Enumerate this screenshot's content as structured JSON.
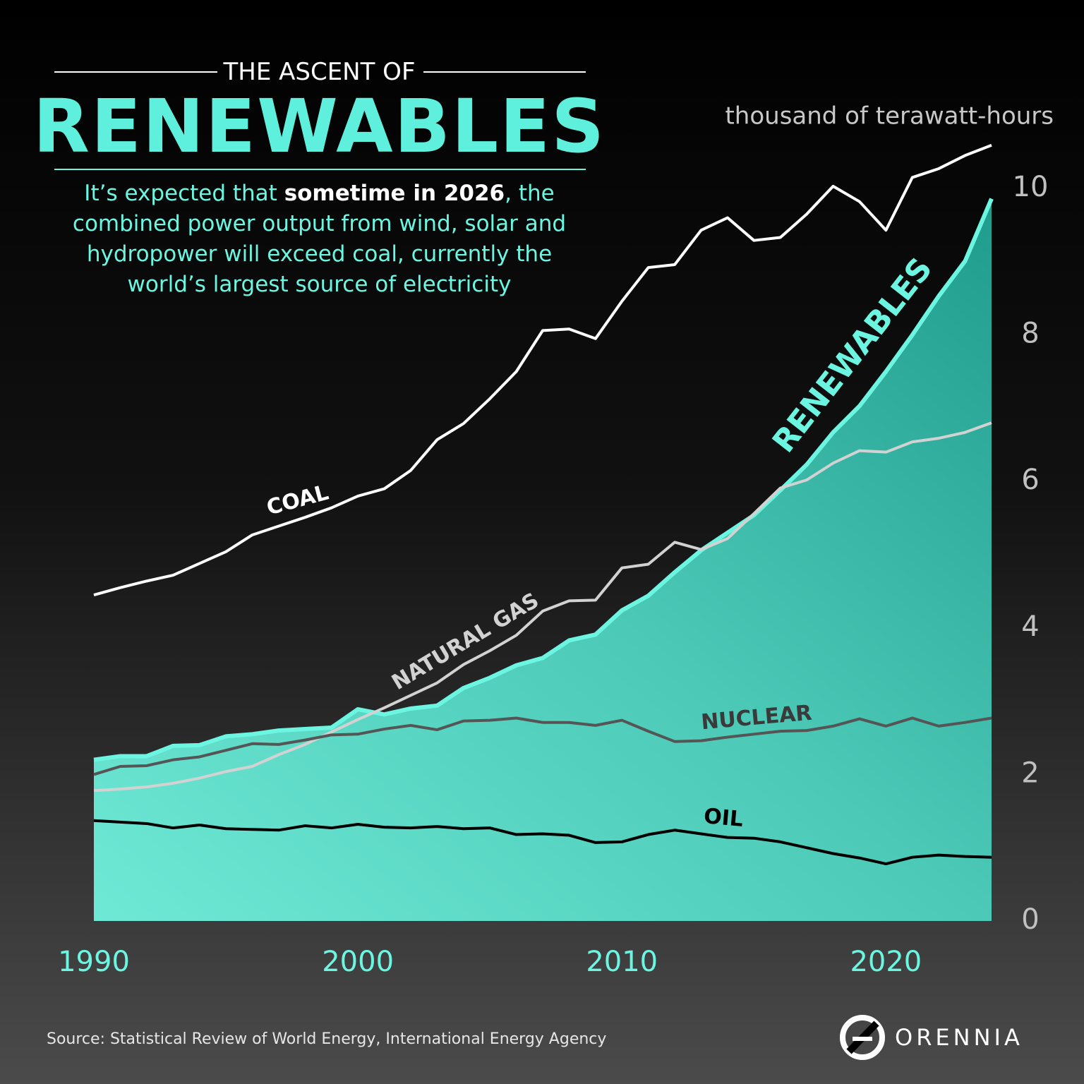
{
  "header": {
    "kicker": "THE ASCENT OF",
    "title": "RENEWABLES",
    "subtitle": [
      "It’s expected that ",
      "sometime in 2026",
      ", the combined power output from wind, solar and hydropower will exceed coal, currently the world’s largest source of electricity"
    ]
  },
  "chart_data": {
    "type": "line",
    "y_label": "thousand of terawatt-hours",
    "x": [
      1990,
      1991,
      1992,
      1993,
      1994,
      1995,
      1996,
      1997,
      1998,
      1999,
      2000,
      2001,
      2002,
      2003,
      2004,
      2005,
      2006,
      2007,
      2008,
      2009,
      2010,
      2011,
      2012,
      2013,
      2014,
      2015,
      2016,
      2017,
      2018,
      2019,
      2020,
      2021,
      2022,
      2023,
      2024
    ],
    "xlim": [
      1990,
      2024
    ],
    "xticks": [
      1990,
      2000,
      2010,
      2020
    ],
    "ylim": [
      0,
      11
    ],
    "yticks": [
      0,
      2,
      4,
      6,
      8,
      10
    ],
    "grid": false,
    "series": [
      {
        "name": "RENEWABLES",
        "color": "#6cf6e2",
        "area": true,
        "values": [
          2.2,
          2.25,
          2.25,
          2.39,
          2.4,
          2.52,
          2.55,
          2.6,
          2.62,
          2.64,
          2.89,
          2.82,
          2.9,
          2.94,
          3.18,
          3.32,
          3.49,
          3.59,
          3.83,
          3.91,
          4.24,
          4.44,
          4.76,
          5.06,
          5.3,
          5.54,
          5.88,
          6.23,
          6.67,
          7.03,
          7.5,
          8.0,
          8.53,
          9.01,
          9.86
        ]
      },
      {
        "name": "COAL",
        "color": "#ffffff",
        "values": [
          4.45,
          4.55,
          4.64,
          4.72,
          4.88,
          5.04,
          5.27,
          5.39,
          5.51,
          5.64,
          5.8,
          5.9,
          6.15,
          6.57,
          6.79,
          7.13,
          7.5,
          8.06,
          8.08,
          7.95,
          8.46,
          8.92,
          8.96,
          9.43,
          9.6,
          9.29,
          9.33,
          9.65,
          10.03,
          9.82,
          9.43,
          10.15,
          10.27,
          10.45,
          10.59
        ]
      },
      {
        "name": "NATURAL GAS",
        "color": "#d2d2d2",
        "values": [
          1.78,
          1.8,
          1.83,
          1.88,
          1.95,
          2.04,
          2.11,
          2.27,
          2.41,
          2.58,
          2.75,
          2.91,
          3.08,
          3.25,
          3.5,
          3.69,
          3.9,
          4.23,
          4.37,
          4.38,
          4.82,
          4.87,
          5.17,
          5.07,
          5.22,
          5.56,
          5.91,
          6.02,
          6.25,
          6.42,
          6.4,
          6.54,
          6.59,
          6.67,
          6.8
        ]
      },
      {
        "name": "NUCLEAR",
        "color": "#555555",
        "values": [
          2.0,
          2.11,
          2.12,
          2.2,
          2.24,
          2.33,
          2.42,
          2.41,
          2.47,
          2.54,
          2.55,
          2.62,
          2.67,
          2.61,
          2.73,
          2.74,
          2.77,
          2.71,
          2.71,
          2.67,
          2.74,
          2.59,
          2.45,
          2.46,
          2.51,
          2.55,
          2.59,
          2.6,
          2.66,
          2.76,
          2.66,
          2.77,
          2.66,
          2.71,
          2.77
        ]
      },
      {
        "name": "OIL",
        "color": "#000000",
        "values": [
          1.37,
          1.35,
          1.33,
          1.27,
          1.31,
          1.26,
          1.25,
          1.24,
          1.3,
          1.27,
          1.32,
          1.28,
          1.27,
          1.29,
          1.26,
          1.27,
          1.18,
          1.19,
          1.17,
          1.07,
          1.08,
          1.18,
          1.24,
          1.19,
          1.14,
          1.13,
          1.08,
          1.0,
          0.92,
          0.86,
          0.78,
          0.87,
          0.9,
          0.88,
          0.87
        ]
      }
    ]
  },
  "footer": {
    "source": "Source: Statistical Review of World Energy, International Energy Agency",
    "logo": "ORENNIA"
  }
}
